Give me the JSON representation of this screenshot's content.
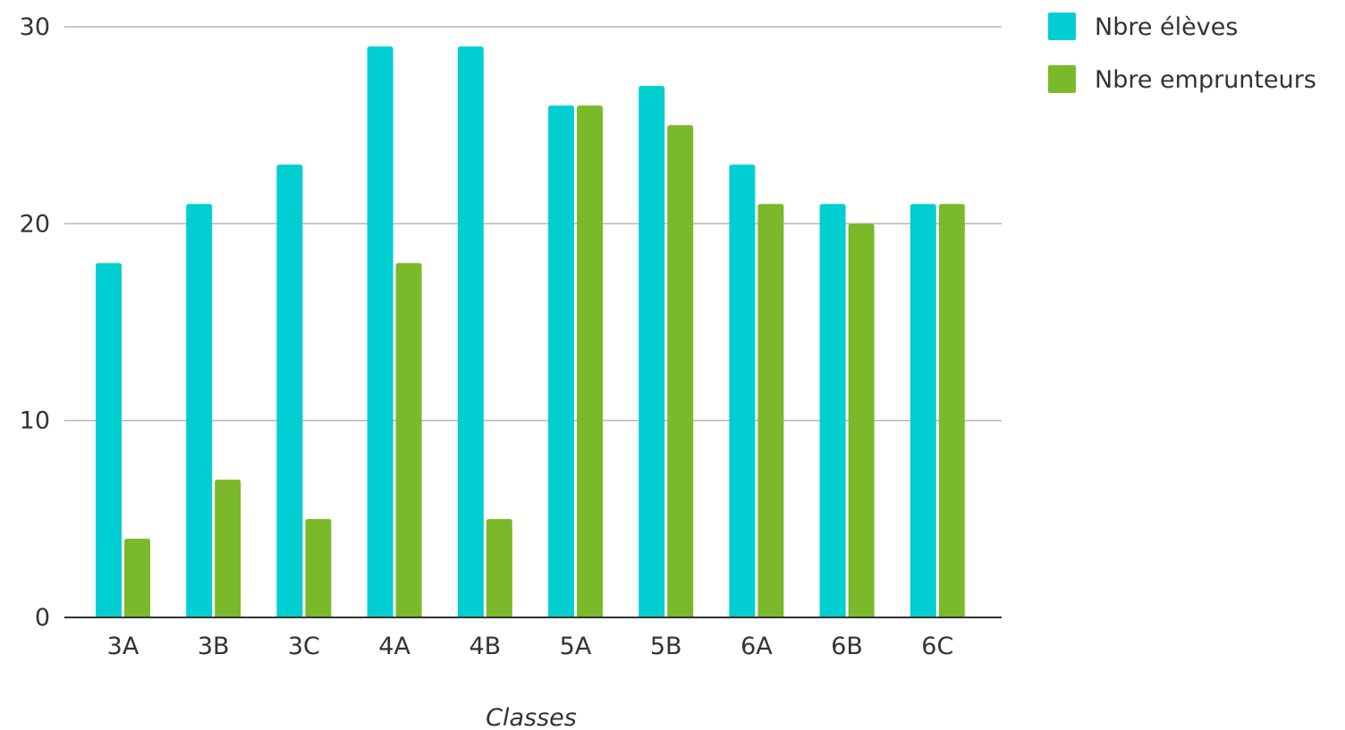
{
  "chart_data": {
    "type": "bar",
    "title": "",
    "xlabel": "Classes",
    "ylabel": "",
    "categories": [
      "3A",
      "3B",
      "3C",
      "4A",
      "4B",
      "5A",
      "5B",
      "6A",
      "6B",
      "6C"
    ],
    "series": [
      {
        "name": "Nbre élèves",
        "color": "#00CED1",
        "values": [
          18,
          21,
          23,
          29,
          29,
          26,
          27,
          23,
          21,
          21
        ]
      },
      {
        "name": "Nbre emprunteurs",
        "color": "#7AB929",
        "values": [
          4,
          7,
          5,
          18,
          5,
          26,
          25,
          21,
          20,
          21
        ]
      }
    ],
    "ylim": [
      0,
      30
    ],
    "yticks": [
      0,
      10,
      20,
      30
    ],
    "grid": true,
    "legend_position": "top-right"
  }
}
